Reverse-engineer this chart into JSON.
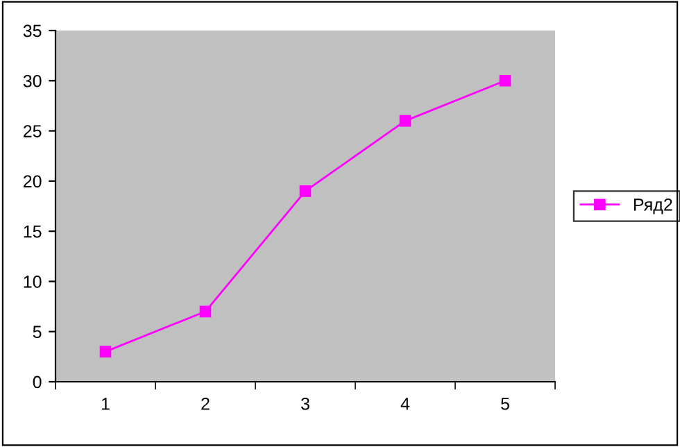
{
  "chart_data": {
    "type": "line",
    "categories": [
      "1",
      "2",
      "3",
      "4",
      "5"
    ],
    "series": [
      {
        "name": "Ряд2",
        "color": "#ff00ff",
        "values": [
          3,
          7,
          19,
          26,
          30
        ]
      }
    ],
    "ylim": [
      0,
      35
    ],
    "yticks": [
      0,
      5,
      10,
      15,
      20,
      25,
      30,
      35
    ],
    "grid": false,
    "legend": "right",
    "marker": "square",
    "line_style": "solid"
  }
}
